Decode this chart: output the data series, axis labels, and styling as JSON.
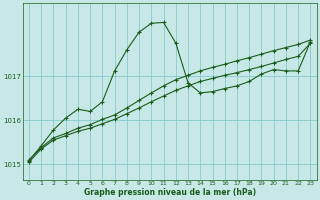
{
  "title": "Graphe pression niveau de la mer (hPa)",
  "bg_color": "#c8e8e8",
  "grid_color": "#88cccc",
  "line_color": "#1a5c1a",
  "ylim": [
    1014.65,
    1018.65
  ],
  "xlim": [
    -0.5,
    23.5
  ],
  "yticks": [
    1015,
    1016,
    1017
  ],
  "xticks": [
    0,
    1,
    2,
    3,
    4,
    5,
    6,
    7,
    8,
    9,
    10,
    11,
    12,
    13,
    14,
    15,
    16,
    17,
    18,
    19,
    20,
    21,
    22,
    23
  ],
  "series1_x": [
    0,
    1,
    2,
    3,
    4,
    5,
    6,
    7,
    8,
    9,
    10,
    11,
    12,
    13,
    14,
    15,
    16,
    17,
    18,
    19,
    20,
    21,
    22,
    23
  ],
  "series1_y": [
    1015.05,
    1015.35,
    1015.55,
    1015.65,
    1015.75,
    1015.82,
    1015.92,
    1016.02,
    1016.15,
    1016.28,
    1016.42,
    1016.55,
    1016.68,
    1016.78,
    1016.88,
    1016.95,
    1017.02,
    1017.08,
    1017.15,
    1017.22,
    1017.3,
    1017.38,
    1017.45,
    1017.75
  ],
  "series2_x": [
    0,
    1,
    2,
    3,
    4,
    5,
    6,
    7,
    8,
    9,
    10,
    11,
    12,
    13,
    14,
    15,
    16,
    17,
    18,
    19,
    20,
    21,
    22,
    23
  ],
  "series2_y": [
    1015.1,
    1015.38,
    1015.6,
    1015.7,
    1015.82,
    1015.9,
    1016.02,
    1016.12,
    1016.28,
    1016.45,
    1016.62,
    1016.78,
    1016.92,
    1017.02,
    1017.12,
    1017.2,
    1017.27,
    1017.35,
    1017.42,
    1017.5,
    1017.58,
    1017.65,
    1017.72,
    1017.82
  ],
  "series3_x": [
    0,
    1,
    2,
    3,
    4,
    5,
    6,
    7,
    8,
    9,
    10,
    11,
    12,
    13,
    14,
    15,
    16,
    17,
    18,
    19,
    20,
    21,
    22,
    23
  ],
  "series3_y": [
    1015.08,
    1015.42,
    1015.78,
    1016.05,
    1016.25,
    1016.2,
    1016.42,
    1017.12,
    1017.6,
    1018.0,
    1018.2,
    1018.22,
    1017.75,
    1016.85,
    1016.62,
    1016.65,
    1016.72,
    1016.78,
    1016.88,
    1017.05,
    1017.15,
    1017.12,
    1017.12,
    1017.78
  ]
}
